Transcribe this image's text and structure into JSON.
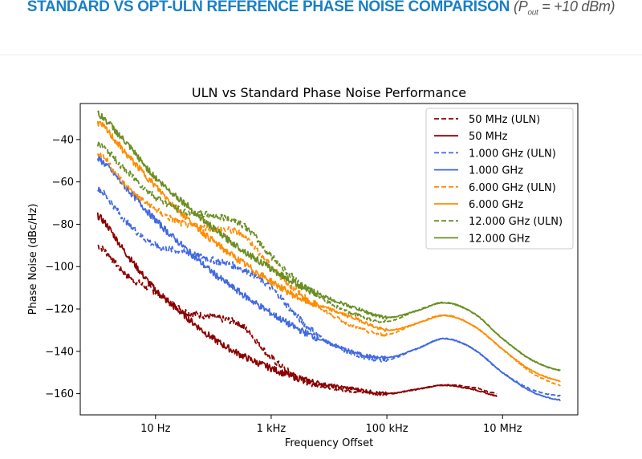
{
  "page": {
    "heading": "STANDARD VS OPT-ULN REFERENCE PHASE NOISE COMPARISON",
    "condition_prefix": "(P",
    "condition_sub": "out",
    "condition_suffix": " = +10 dBm)"
  },
  "chart_data": {
    "type": "line",
    "title": "ULN vs Standard Phase Noise Performance",
    "xlabel": "Frequency Offset",
    "ylabel": "Phase Noise (dBc/Hz)",
    "xscale": "log",
    "xlim_hz": [
      0.5,
      200000000
    ],
    "ylim": [
      -170,
      -23
    ],
    "grid": false,
    "legend_position": "top-right",
    "x_ticks": [
      {
        "value": 10,
        "label": "10 Hz"
      },
      {
        "value": 1000,
        "label": "1 kHz"
      },
      {
        "value": 100000,
        "label": "100 kHz"
      },
      {
        "value": 10000000,
        "label": "10 MHz"
      }
    ],
    "y_ticks": [
      {
        "value": -40,
        "label": "−40"
      },
      {
        "value": -60,
        "label": "−60"
      },
      {
        "value": -80,
        "label": "−80"
      },
      {
        "value": -100,
        "label": "−100"
      },
      {
        "value": -120,
        "label": "−120"
      },
      {
        "value": -140,
        "label": "−140"
      },
      {
        "value": -160,
        "label": "−160"
      }
    ],
    "series": [
      {
        "name": "50 MHz (ULN)",
        "color": "#8b0000",
        "style": "dashed",
        "x_hz": [
          1,
          3.16,
          10,
          31.6,
          100,
          316,
          1000,
          3162,
          10000,
          31623,
          100000,
          316228,
          1000000,
          3162278,
          7943282
        ],
        "y": [
          -90,
          -104,
          -112,
          -121,
          -124,
          -128,
          -143,
          -153,
          -157,
          -159,
          -160,
          -158,
          -156,
          -157,
          -160
        ]
      },
      {
        "name": "50 MHz",
        "color": "#8b0000",
        "style": "solid",
        "x_hz": [
          1,
          3.16,
          10,
          31.6,
          100,
          316,
          1000,
          3162,
          10000,
          31623,
          100000,
          316228,
          1000000,
          3162278,
          7943282
        ],
        "y": [
          -76,
          -94,
          -111,
          -123,
          -134,
          -142,
          -148,
          -153,
          -156,
          -158,
          -160,
          -158,
          -156,
          -158,
          -161
        ]
      },
      {
        "name": "1.000 GHz (ULN)",
        "color": "#4169e1",
        "style": "dashed",
        "x_hz": [
          1,
          3.16,
          10,
          31.6,
          100,
          316,
          1000,
          3162,
          10000,
          31623,
          100000,
          316228,
          1000000,
          3162278,
          10000000,
          31622777,
          100000000
        ],
        "y": [
          -63,
          -79,
          -90,
          -93,
          -97,
          -101,
          -110,
          -125,
          -136,
          -142,
          -144,
          -139,
          -134,
          -139,
          -150,
          -158,
          -161
        ]
      },
      {
        "name": "1.000 GHz",
        "color": "#4169e1",
        "style": "solid",
        "x_hz": [
          1,
          3.16,
          10,
          31.6,
          100,
          316,
          1000,
          3162,
          10000,
          31623,
          100000,
          316228,
          1000000,
          3162278,
          10000000,
          31622777,
          100000000
        ],
        "y": [
          -49,
          -63,
          -78,
          -91,
          -103,
          -113,
          -122,
          -130,
          -136,
          -141,
          -143,
          -139,
          -134,
          -139,
          -150,
          -159,
          -163
        ]
      },
      {
        "name": "6.000 GHz (ULN)",
        "color": "#ff8c00",
        "style": "dashed",
        "x_hz": [
          1,
          3.16,
          10,
          31.6,
          100,
          316,
          1000,
          3162,
          10000,
          31623,
          100000,
          316228,
          1000000,
          3162278,
          10000000,
          31622777,
          100000000
        ],
        "y": [
          -46,
          -62,
          -73,
          -80,
          -82,
          -85,
          -100,
          -113,
          -122,
          -129,
          -132,
          -127,
          -123,
          -128,
          -139,
          -150,
          -156
        ]
      },
      {
        "name": "6.000 GHz",
        "color": "#ff8c00",
        "style": "solid",
        "x_hz": [
          1,
          3.16,
          10,
          31.6,
          100,
          316,
          1000,
          3162,
          10000,
          31623,
          100000,
          316228,
          1000000,
          3162278,
          10000000,
          31622777,
          100000000
        ],
        "y": [
          -32,
          -47,
          -62,
          -76,
          -88,
          -98,
          -107,
          -115,
          -120,
          -125,
          -130,
          -127,
          -123,
          -128,
          -139,
          -149,
          -154
        ]
      },
      {
        "name": "12.000 GHz (ULN)",
        "color": "#6b8e23",
        "style": "dashed",
        "x_hz": [
          1,
          3.16,
          10,
          31.6,
          100,
          316,
          1000,
          3162,
          10000,
          31623,
          100000,
          316228,
          1000000,
          3162278,
          10000000,
          31622777,
          100000000
        ],
        "y": [
          -42,
          -55,
          -67,
          -74,
          -76,
          -80,
          -95,
          -108,
          -117,
          -123,
          -126,
          -121,
          -117,
          -122,
          -134,
          -144,
          -149
        ]
      },
      {
        "name": "12.000 GHz",
        "color": "#6b8e23",
        "style": "solid",
        "x_hz": [
          1,
          3.16,
          10,
          31.6,
          100,
          316,
          1000,
          3162,
          10000,
          31623,
          100000,
          316228,
          1000000,
          3162278,
          10000000,
          31622777,
          100000000
        ],
        "y": [
          -28,
          -42,
          -58,
          -70,
          -82,
          -92,
          -101,
          -109,
          -115,
          -120,
          -124,
          -121,
          -117,
          -122,
          -134,
          -144,
          -149
        ]
      }
    ]
  }
}
